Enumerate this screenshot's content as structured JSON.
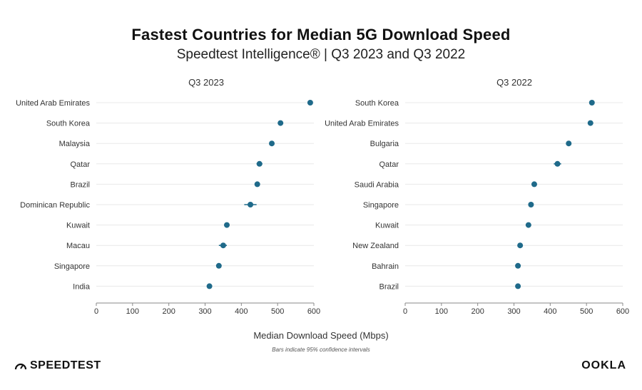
{
  "title": "Fastest Countries for Median 5G Download Speed",
  "subtitle": "Speedtest Intelligence® | Q3 2023 and Q3 2022",
  "xlabel": "Median Download Speed (Mbps)",
  "note": "Bars indicate 95% confidence intervals",
  "logos": {
    "left": "SPEEDTEST",
    "right": "OOKLA"
  },
  "colors": {
    "point": "#1f6a8a",
    "grid": "#e8e8e8",
    "axis": "#888888"
  },
  "chart_data": [
    {
      "type": "scatter",
      "title": "Q3 2023",
      "xlim": [
        0,
        600
      ],
      "xticks": [
        0,
        100,
        200,
        300,
        400,
        500,
        600
      ],
      "grid": true,
      "points": [
        {
          "label": "United Arab Emirates",
          "value": 590,
          "ci": [
            587,
            593
          ]
        },
        {
          "label": "South Korea",
          "value": 508,
          "ci": [
            504,
            512
          ]
        },
        {
          "label": "Malaysia",
          "value": 484,
          "ci": [
            481,
            487
          ]
        },
        {
          "label": "Qatar",
          "value": 450,
          "ci": [
            442,
            458
          ]
        },
        {
          "label": "Brazil",
          "value": 444,
          "ci": [
            441,
            447
          ]
        },
        {
          "label": "Dominican Republic",
          "value": 425,
          "ci": [
            408,
            442
          ]
        },
        {
          "label": "Kuwait",
          "value": 360,
          "ci": [
            357,
            363
          ]
        },
        {
          "label": "Macau",
          "value": 350,
          "ci": [
            338,
            360
          ]
        },
        {
          "label": "Singapore",
          "value": 338,
          "ci": [
            335,
            341
          ]
        },
        {
          "label": "India",
          "value": 312,
          "ci": [
            310,
            314
          ]
        }
      ]
    },
    {
      "type": "scatter",
      "title": "Q3 2022",
      "xlim": [
        0,
        600
      ],
      "xticks": [
        0,
        100,
        200,
        300,
        400,
        500,
        600
      ],
      "grid": true,
      "points": [
        {
          "label": "South Korea",
          "value": 515,
          "ci": [
            512,
            518
          ]
        },
        {
          "label": "United Arab Emirates",
          "value": 511,
          "ci": [
            508,
            514
          ]
        },
        {
          "label": "Bulgaria",
          "value": 451,
          "ci": [
            448,
            454
          ]
        },
        {
          "label": "Qatar",
          "value": 420,
          "ci": [
            410,
            430
          ]
        },
        {
          "label": "Saudi Arabia",
          "value": 356,
          "ci": [
            353,
            359
          ]
        },
        {
          "label": "Singapore",
          "value": 347,
          "ci": [
            343,
            351
          ]
        },
        {
          "label": "Kuwait",
          "value": 340,
          "ci": [
            337,
            343
          ]
        },
        {
          "label": "New Zealand",
          "value": 317,
          "ci": [
            313,
            321
          ]
        },
        {
          "label": "Bahrain",
          "value": 311,
          "ci": [
            308,
            314
          ]
        },
        {
          "label": "Brazil",
          "value": 311,
          "ci": [
            308,
            314
          ]
        }
      ]
    }
  ]
}
